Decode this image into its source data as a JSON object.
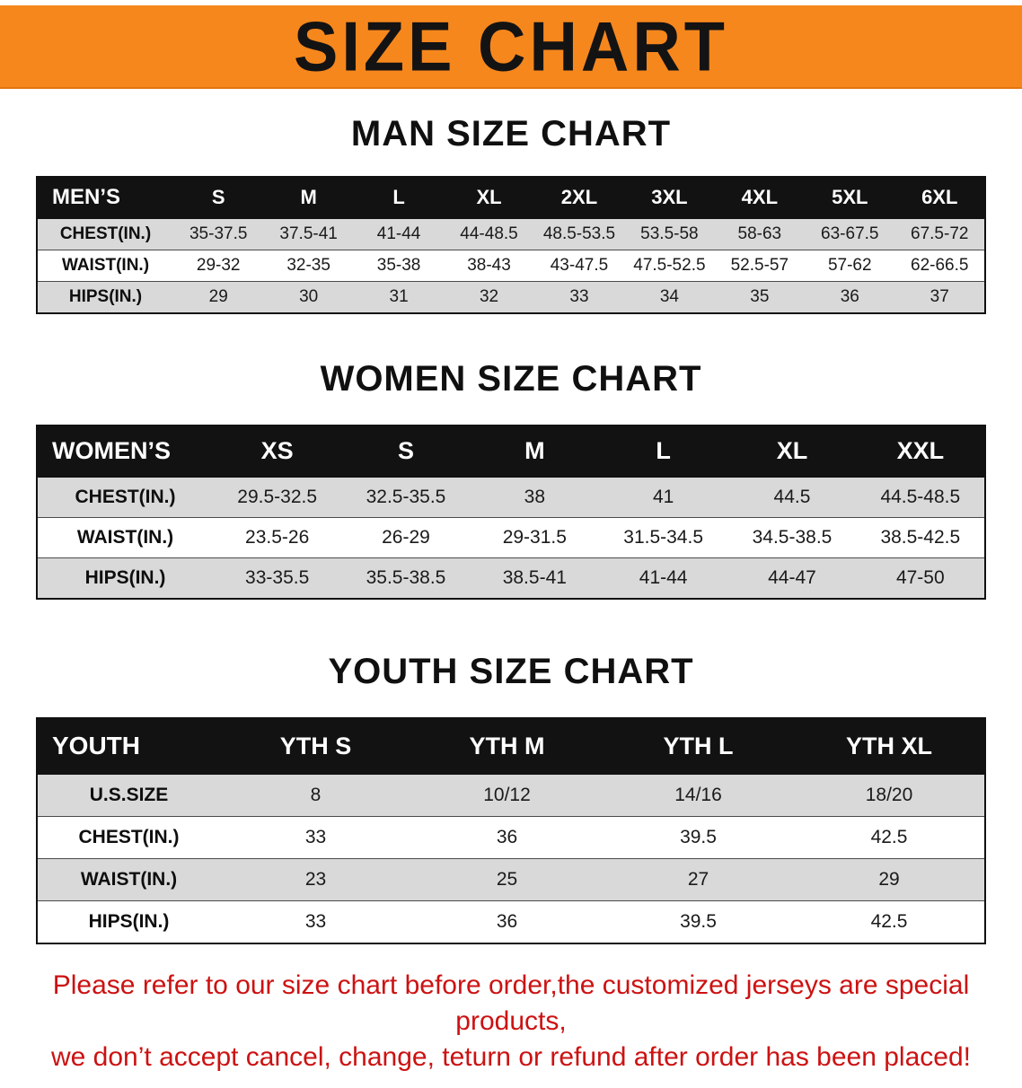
{
  "banner": {
    "title": "SIZE CHART"
  },
  "colors": {
    "banner_bg": "#f6871d",
    "table_header_bg": "#121212",
    "row_stripe": "#d9d9d9",
    "disclaimer_text": "#cc1212"
  },
  "sections": [
    {
      "heading": "MAN SIZE CHART",
      "table": {
        "header": [
          "MEN’S",
          "S",
          "M",
          "L",
          "XL",
          "2XL",
          "3XL",
          "4XL",
          "5XL",
          "6XL"
        ],
        "rows": [
          [
            "CHEST(IN.)",
            "35-37.5",
            "37.5-41",
            "41-44",
            "44-48.5",
            "48.5-53.5",
            "53.5-58",
            "58-63",
            "63-67.5",
            "67.5-72"
          ],
          [
            "WAIST(IN.)",
            "29-32",
            "32-35",
            "35-38",
            "38-43",
            "43-47.5",
            "47.5-52.5",
            "52.5-57",
            "57-62",
            "62-66.5"
          ],
          [
            "HIPS(IN.)",
            "29",
            "30",
            "31",
            "32",
            "33",
            "34",
            "35",
            "36",
            "37"
          ]
        ]
      }
    },
    {
      "heading": "WOMEN SIZE CHART",
      "table": {
        "header": [
          "WOMEN’S",
          "XS",
          "S",
          "M",
          "L",
          "XL",
          "XXL"
        ],
        "rows": [
          [
            "CHEST(IN.)",
            "29.5-32.5",
            "32.5-35.5",
            "38",
            "41",
            "44.5",
            "44.5-48.5"
          ],
          [
            "WAIST(IN.)",
            "23.5-26",
            "26-29",
            "29-31.5",
            "31.5-34.5",
            "34.5-38.5",
            "38.5-42.5"
          ],
          [
            "HIPS(IN.)",
            "33-35.5",
            "35.5-38.5",
            "38.5-41",
            "41-44",
            "44-47",
            "47-50"
          ]
        ]
      }
    },
    {
      "heading": "YOUTH SIZE CHART",
      "table": {
        "header": [
          "YOUTH",
          "YTH S",
          "YTH M",
          "YTH L",
          "YTH XL"
        ],
        "rows": [
          [
            "U.S.SIZE",
            "8",
            "10/12",
            "14/16",
            "18/20"
          ],
          [
            "CHEST(IN.)",
            "33",
            "36",
            "39.5",
            "42.5"
          ],
          [
            "WAIST(IN.)",
            "23",
            "25",
            "27",
            "29"
          ],
          [
            "HIPS(IN.)",
            "33",
            "36",
            "39.5",
            "42.5"
          ]
        ]
      }
    }
  ],
  "disclaimer": {
    "line1": "Please refer to our size chart before order,the customized jerseys are special products,",
    "line2": "we don’t accept cancel, change, teturn or refund after order has been placed!"
  }
}
